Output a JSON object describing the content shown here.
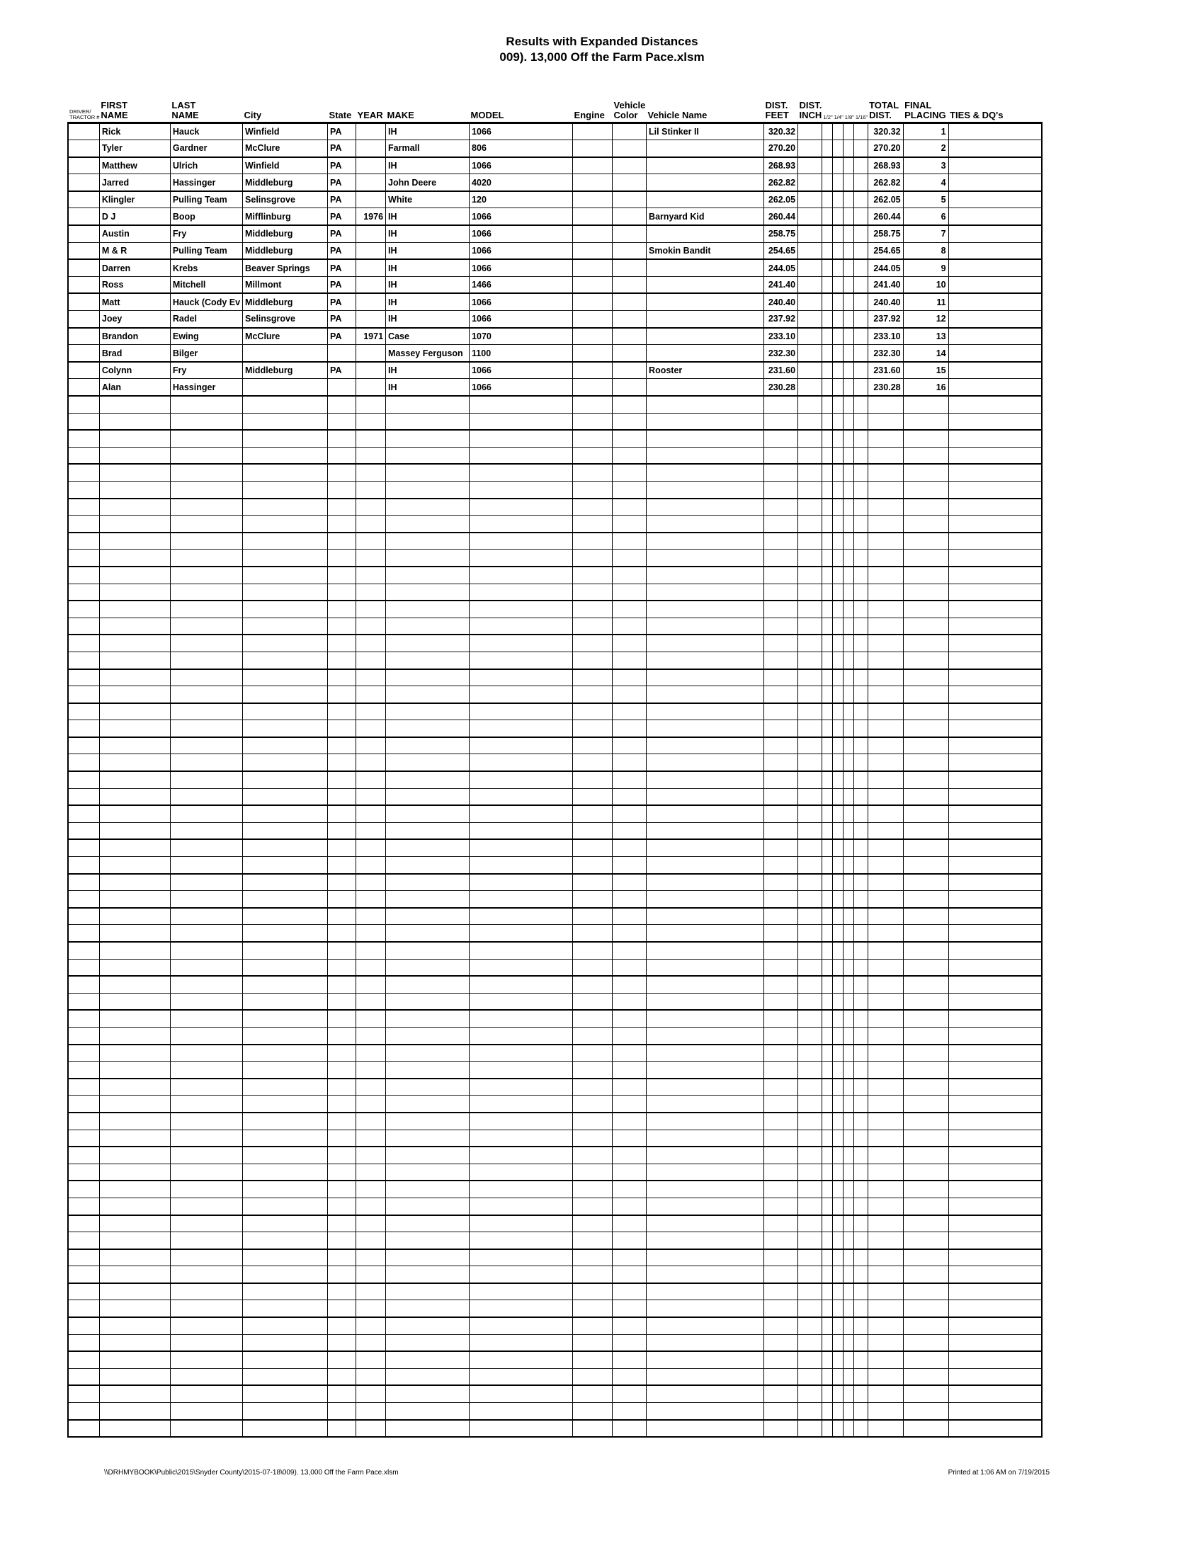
{
  "title": {
    "line1": "Results with Expanded Distances",
    "line2": "009). 13,000 Off the Farm Pace.xlsm"
  },
  "table": {
    "columns": [
      {
        "id": "driver-tractor",
        "key": "driver_tractor",
        "label_top": "DRIVER/",
        "label_bottom": "TRACTOR #",
        "width": 38,
        "align": "left",
        "small": true
      },
      {
        "id": "first-name",
        "key": "first_name",
        "label_top": "FIRST",
        "label_bottom": "NAME",
        "width": 100,
        "align": "left"
      },
      {
        "id": "last-name",
        "key": "last_name",
        "label_top": "LAST",
        "label_bottom": "NAME",
        "width": 98,
        "align": "left"
      },
      {
        "id": "city",
        "key": "city",
        "label_top": "",
        "label_bottom": "City",
        "width": 120,
        "align": "left"
      },
      {
        "id": "state",
        "key": "state",
        "label_top": "",
        "label_bottom": "State",
        "width": 40,
        "align": "left"
      },
      {
        "id": "year",
        "key": "year",
        "label_top": "",
        "label_bottom": "YEAR",
        "width": 42,
        "align": "right"
      },
      {
        "id": "make",
        "key": "make",
        "label_top": "",
        "label_bottom": "MAKE",
        "width": 118,
        "align": "left"
      },
      {
        "id": "model",
        "key": "model",
        "label_top": "",
        "label_bottom": "MODEL",
        "width": 146,
        "align": "left"
      },
      {
        "id": "engine",
        "key": "engine",
        "label_top": "",
        "label_bottom": "Engine",
        "width": 56,
        "align": "left"
      },
      {
        "id": "vehicle-color",
        "key": "vehicle_color",
        "label_top": "Vehicle",
        "label_bottom": "Color",
        "width": 48,
        "align": "left"
      },
      {
        "id": "vehicle-name",
        "key": "vehicle_name",
        "label_top": "",
        "label_bottom": "Vehicle Name",
        "width": 166,
        "align": "left"
      },
      {
        "id": "dist-feet",
        "key": "dist_feet",
        "label_top": "DIST.",
        "label_bottom": "FEET",
        "width": 48,
        "align": "right"
      },
      {
        "id": "dist-inch",
        "key": "dist_inch",
        "label_top": "DIST.",
        "label_bottom": "INCH",
        "width": 34,
        "align": "right"
      },
      {
        "id": "half-inch",
        "key": "half_inch",
        "label_top": "",
        "label_bottom": "1/2\"",
        "width": 14,
        "align": "left",
        "small": true
      },
      {
        "id": "quarter-inch",
        "key": "quarter_inch",
        "label_top": "",
        "label_bottom": "1/4\"",
        "width": 13,
        "align": "left",
        "small": true
      },
      {
        "id": "eighth-inch",
        "key": "eighth_inch",
        "label_top": "",
        "label_bottom": "1/8\"",
        "width": 14,
        "align": "left",
        "small": true
      },
      {
        "id": "sixteenth-inch",
        "key": "sixteenth_inch",
        "label_top": "",
        "label_bottom": "1/16\"",
        "width": 13,
        "align": "left",
        "small": true
      },
      {
        "id": "total-dist",
        "key": "total_dist",
        "label_top": "TOTAL",
        "label_bottom": "DIST.",
        "width": 50,
        "align": "right"
      },
      {
        "id": "final-placing",
        "key": "final_placing",
        "label_top": "FINAL",
        "label_bottom": "PLACING",
        "width": 64,
        "align": "right"
      },
      {
        "id": "ties-dqs",
        "key": "ties_dqs",
        "label_top": "",
        "label_bottom": "TIES & DQ's",
        "width": 132,
        "align": "left"
      }
    ],
    "rows": [
      {
        "first_name": "Rick",
        "last_name": "Hauck",
        "city": "Winfield",
        "state": "PA",
        "year": "",
        "make": "IH",
        "model": "1066",
        "engine": "",
        "vehicle_color": "",
        "vehicle_name": "Lil Stinker II",
        "dist_feet": "320.32",
        "dist_inch": "",
        "total_dist": "320.32",
        "final_placing": "1",
        "ties_dqs": ""
      },
      {
        "first_name": "Tyler",
        "last_name": "Gardner",
        "city": "McClure",
        "state": "PA",
        "year": "",
        "make": "Farmall",
        "model": "806",
        "engine": "",
        "vehicle_color": "",
        "vehicle_name": "",
        "dist_feet": "270.20",
        "dist_inch": "",
        "total_dist": "270.20",
        "final_placing": "2",
        "ties_dqs": ""
      },
      {
        "first_name": "Matthew",
        "last_name": "Ulrich",
        "city": "Winfield",
        "state": "PA",
        "year": "",
        "make": "IH",
        "model": "1066",
        "engine": "",
        "vehicle_color": "",
        "vehicle_name": "",
        "dist_feet": "268.93",
        "dist_inch": "",
        "total_dist": "268.93",
        "final_placing": "3",
        "ties_dqs": ""
      },
      {
        "first_name": "Jarred",
        "last_name": "Hassinger",
        "city": "Middleburg",
        "state": "PA",
        "year": "",
        "make": "John Deere",
        "model": "4020",
        "engine": "",
        "vehicle_color": "",
        "vehicle_name": "",
        "dist_feet": "262.82",
        "dist_inch": "",
        "total_dist": "262.82",
        "final_placing": "4",
        "ties_dqs": ""
      },
      {
        "first_name": "Klingler",
        "last_name": "Pulling Team",
        "city": "Selinsgrove",
        "state": "PA",
        "year": "",
        "make": "White",
        "model": "120",
        "engine": "",
        "vehicle_color": "",
        "vehicle_name": "",
        "dist_feet": "262.05",
        "dist_inch": "",
        "total_dist": "262.05",
        "final_placing": "5",
        "ties_dqs": ""
      },
      {
        "first_name": "D J",
        "last_name": "Boop",
        "city": "Mifflinburg",
        "state": "PA",
        "year": "1976",
        "make": "IH",
        "model": "1066",
        "engine": "",
        "vehicle_color": "",
        "vehicle_name": "Barnyard Kid",
        "dist_feet": "260.44",
        "dist_inch": "",
        "total_dist": "260.44",
        "final_placing": "6",
        "ties_dqs": ""
      },
      {
        "first_name": "Austin",
        "last_name": "Fry",
        "city": "Middleburg",
        "state": "PA",
        "year": "",
        "make": "IH",
        "model": "1066",
        "engine": "",
        "vehicle_color": "",
        "vehicle_name": "",
        "dist_feet": "258.75",
        "dist_inch": "",
        "total_dist": "258.75",
        "final_placing": "7",
        "ties_dqs": ""
      },
      {
        "first_name": "M & R",
        "last_name": "Pulling Team",
        "city": "Middleburg",
        "state": "PA",
        "year": "",
        "make": "IH",
        "model": "1066",
        "engine": "",
        "vehicle_color": "",
        "vehicle_name": "Smokin Bandit",
        "dist_feet": "254.65",
        "dist_inch": "",
        "total_dist": "254.65",
        "final_placing": "8",
        "ties_dqs": ""
      },
      {
        "first_name": "Darren",
        "last_name": "Krebs",
        "city": "Beaver Springs",
        "state": "PA",
        "year": "",
        "make": "IH",
        "model": "1066",
        "engine": "",
        "vehicle_color": "",
        "vehicle_name": "",
        "dist_feet": "244.05",
        "dist_inch": "",
        "total_dist": "244.05",
        "final_placing": "9",
        "ties_dqs": ""
      },
      {
        "first_name": "Ross",
        "last_name": "Mitchell",
        "city": "Millmont",
        "state": "PA",
        "year": "",
        "make": "IH",
        "model": "1466",
        "engine": "",
        "vehicle_color": "",
        "vehicle_name": "",
        "dist_feet": "241.40",
        "dist_inch": "",
        "total_dist": "241.40",
        "final_placing": "10",
        "ties_dqs": ""
      },
      {
        "first_name": "Matt",
        "last_name": "Hauck (Cody Ev",
        "city": "Middleburg",
        "state": "PA",
        "year": "",
        "make": "IH",
        "model": "1066",
        "engine": "",
        "vehicle_color": "",
        "vehicle_name": "",
        "dist_feet": "240.40",
        "dist_inch": "",
        "total_dist": "240.40",
        "final_placing": "11",
        "ties_dqs": ""
      },
      {
        "first_name": "Joey",
        "last_name": "Radel",
        "city": "Selinsgrove",
        "state": "PA",
        "year": "",
        "make": "IH",
        "model": "1066",
        "engine": "",
        "vehicle_color": "",
        "vehicle_name": "",
        "dist_feet": "237.92",
        "dist_inch": "",
        "total_dist": "237.92",
        "final_placing": "12",
        "ties_dqs": ""
      },
      {
        "first_name": "Brandon",
        "last_name": "Ewing",
        "city": "McClure",
        "state": "PA",
        "year": "1971",
        "make": "Case",
        "model": "1070",
        "engine": "",
        "vehicle_color": "",
        "vehicle_name": "",
        "dist_feet": "233.10",
        "dist_inch": "",
        "total_dist": "233.10",
        "final_placing": "13",
        "ties_dqs": ""
      },
      {
        "first_name": "Brad",
        "last_name": "Bilger",
        "city": "",
        "state": "",
        "year": "",
        "make": "Massey Ferguson",
        "model": "1100",
        "engine": "",
        "vehicle_color": "",
        "vehicle_name": "",
        "dist_feet": "232.30",
        "dist_inch": "",
        "total_dist": "232.30",
        "final_placing": "14",
        "ties_dqs": ""
      },
      {
        "first_name": "Colynn",
        "last_name": "Fry",
        "city": "Middleburg",
        "state": "PA",
        "year": "",
        "make": "IH",
        "model": "1066",
        "engine": "",
        "vehicle_color": "",
        "vehicle_name": "Rooster",
        "dist_feet": "231.60",
        "dist_inch": "",
        "total_dist": "231.60",
        "final_placing": "15",
        "ties_dqs": ""
      },
      {
        "first_name": "Alan",
        "last_name": "Hassinger",
        "city": "",
        "state": "",
        "year": "",
        "make": "IH",
        "model": "1066",
        "engine": "",
        "vehicle_color": "",
        "vehicle_name": "",
        "dist_feet": "230.28",
        "dist_inch": "",
        "total_dist": "230.28",
        "final_placing": "16",
        "ties_dqs": ""
      }
    ],
    "empty_row_count": 61
  },
  "footer": {
    "left": "\\\\DRHMYBOOK\\Public\\2015\\Snyder County\\2015-07-18\\009). 13,000 Off the Farm Pace.xlsm",
    "right": "Printed at 1:06 AM on 7/19/2015"
  }
}
